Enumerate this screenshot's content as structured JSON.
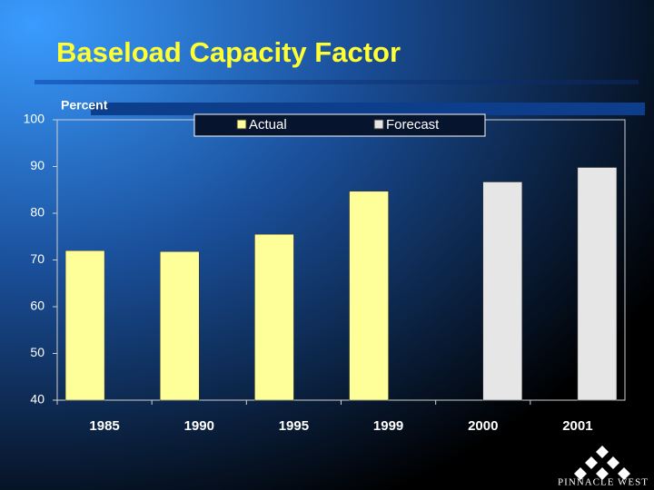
{
  "chart_data": {
    "type": "bar",
    "title": "Baseload Capacity Factor",
    "y_label": "Percent",
    "categories": [
      "1985",
      "1990",
      "1995",
      "1999",
      "2000",
      "2001"
    ],
    "series": [
      {
        "name": "Actual",
        "color": "#ffff99",
        "values": [
          72,
          71.8,
          75.5,
          84.7,
          null,
          null
        ]
      },
      {
        "name": "Forecast",
        "color": "#e6e6e6",
        "values": [
          null,
          null,
          null,
          null,
          86.7,
          89.8
        ]
      }
    ],
    "ylim": [
      40,
      100
    ],
    "yticks": [
      40,
      50,
      60,
      70,
      80,
      90,
      100
    ],
    "grid": false,
    "legend": "top"
  },
  "logo": "PINNACLE WEST"
}
